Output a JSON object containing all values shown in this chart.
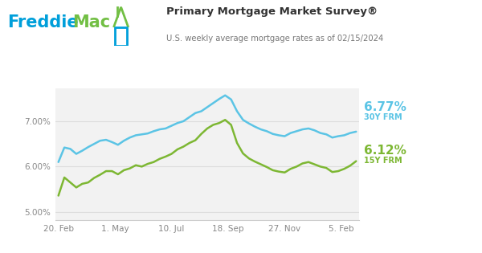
{
  "title": "Primary Mortgage Market Survey®",
  "subtitle": "U.S. weekly average mortgage rates as of 02/15/2024",
  "x_labels": [
    "20. Feb",
    "1. May",
    "10. Jul",
    "18. Sep",
    "27. Nov",
    "5. Feb"
  ],
  "y_labels": [
    "5.00%",
    "6.00%",
    "7.00%"
  ],
  "y_ticks": [
    5.0,
    6.0,
    7.0
  ],
  "ylim": [
    4.82,
    7.72
  ],
  "rate_30y_label": "6.77%",
  "rate_30y_sublabel": "30Y FRM",
  "rate_15y_label": "6.12%",
  "rate_15y_sublabel": "15Y FRM",
  "color_30y": "#5BC4E5",
  "color_15y": "#7DB733",
  "color_freddie_blue": "#009FDA",
  "color_freddie_green": "#72BF44",
  "plot_bg_color": "#F2F2F2",
  "title_color": "#333333",
  "subtitle_color": "#777777",
  "grid_color": "#DDDDDD",
  "x_tick_positions": [
    0,
    9.5,
    19,
    28.5,
    38,
    47.5
  ],
  "x30y": [
    0,
    1,
    2,
    3,
    4,
    5,
    6,
    7,
    8,
    9,
    10,
    11,
    12,
    13,
    14,
    15,
    16,
    17,
    18,
    19,
    20,
    21,
    22,
    23,
    24,
    25,
    26,
    27,
    28,
    29,
    30,
    31,
    32,
    33,
    34,
    35,
    36,
    37,
    38,
    39,
    40,
    41,
    42,
    43,
    44,
    45,
    46,
    47,
    48,
    49,
    50
  ],
  "y30y": [
    6.1,
    6.42,
    6.39,
    6.28,
    6.35,
    6.43,
    6.5,
    6.57,
    6.59,
    6.54,
    6.48,
    6.57,
    6.64,
    6.69,
    6.71,
    6.73,
    6.78,
    6.82,
    6.84,
    6.9,
    6.96,
    7.0,
    7.09,
    7.18,
    7.22,
    7.31,
    7.4,
    7.49,
    7.57,
    7.48,
    7.22,
    7.03,
    6.95,
    6.88,
    6.82,
    6.78,
    6.72,
    6.69,
    6.67,
    6.74,
    6.78,
    6.82,
    6.84,
    6.8,
    6.74,
    6.71,
    6.64,
    6.67,
    6.69,
    6.74,
    6.77
  ],
  "x15y": [
    0,
    1,
    2,
    3,
    4,
    5,
    6,
    7,
    8,
    9,
    10,
    11,
    12,
    13,
    14,
    15,
    16,
    17,
    18,
    19,
    20,
    21,
    22,
    23,
    24,
    25,
    26,
    27,
    28,
    29,
    30,
    31,
    32,
    33,
    34,
    35,
    36,
    37,
    38,
    39,
    40,
    41,
    42,
    43,
    44,
    45,
    46,
    47,
    48,
    49,
    50
  ],
  "y15y": [
    5.36,
    5.76,
    5.65,
    5.54,
    5.62,
    5.65,
    5.75,
    5.82,
    5.9,
    5.9,
    5.83,
    5.92,
    5.96,
    6.03,
    6.0,
    6.06,
    6.1,
    6.17,
    6.22,
    6.28,
    6.38,
    6.44,
    6.52,
    6.58,
    6.72,
    6.84,
    6.92,
    6.96,
    7.03,
    6.92,
    6.52,
    6.29,
    6.18,
    6.11,
    6.05,
    5.99,
    5.92,
    5.89,
    5.87,
    5.95,
    6.0,
    6.07,
    6.1,
    6.05,
    6.0,
    5.97,
    5.88,
    5.9,
    5.95,
    6.02,
    6.12
  ]
}
